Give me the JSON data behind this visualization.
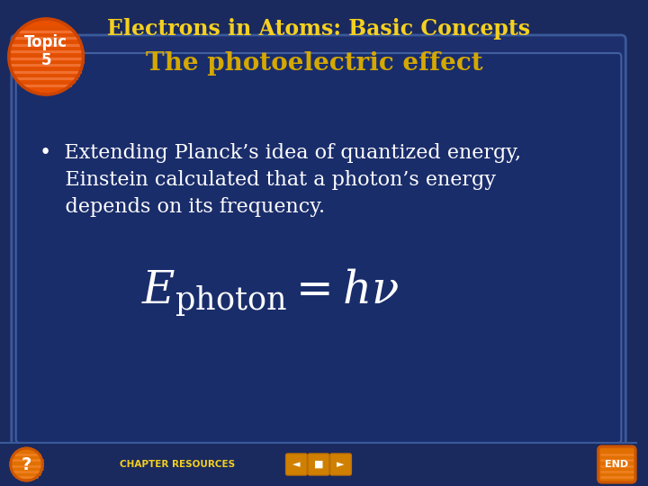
{
  "title": "Electrons in Atoms: Basic Concepts",
  "subtitle": "The photoelectric effect",
  "topic_label": "Topic\n5",
  "bullet_text_line1": "•  Extending Planck’s idea of quantized energy,",
  "bullet_text_line2": "    Einstein calculated that a photon’s energy",
  "bullet_text_line3": "    depends on its frequency.",
  "formula": "$E_{\\\\mathrm{photon}} = h\\\\nu$",
  "bg_outer": "#1a2a5e",
  "bg_inner": "#1e3366",
  "bg_slide": "#1a2a5e",
  "title_color": "#f5d020",
  "subtitle_color": "#d4a800",
  "text_color": "#ffffff",
  "topic_bg": "#e05000",
  "topic_text": "#ffffff",
  "bottom_bar_color": "#1a2a5e",
  "chapter_resources_color": "#f5d020",
  "formula_color": "#ffffff"
}
